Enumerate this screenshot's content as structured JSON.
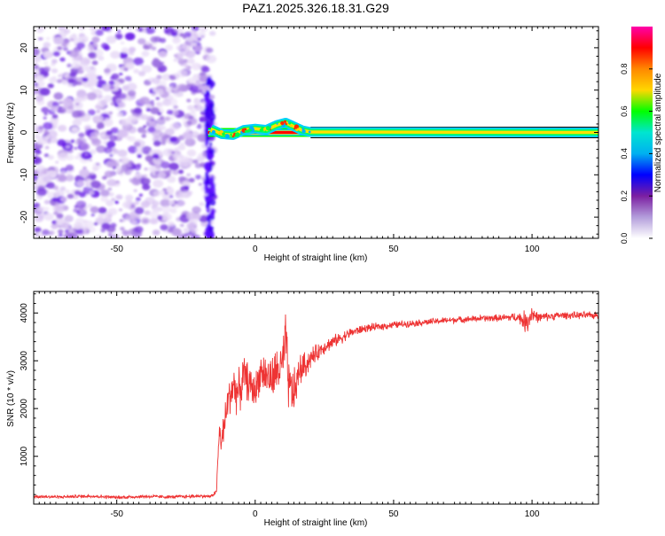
{
  "figure_title": "PAZ1.2025.326.18.31.G29",
  "chart_data": [
    {
      "type": "heatmap",
      "name": "spectrogram",
      "title": "PAZ1.2025.326.18.31.G29",
      "xlabel": "Height of straight line (km)",
      "ylabel": "Frequency (Hz)",
      "xlim": [
        -80,
        124
      ],
      "ylim": [
        -25,
        25
      ],
      "x_ticks": [
        -50,
        0,
        50,
        100
      ],
      "y_ticks": [
        -20,
        -10,
        0,
        10,
        20
      ],
      "colorbar": {
        "label": "Normalized spectral amplitude",
        "range": [
          0.0,
          1.0
        ],
        "ticks": [
          "0.0",
          "0.2",
          "0.4",
          "0.6",
          "0.8"
        ],
        "colormap": [
          "#ffffff",
          "#b39ddb",
          "#7b1fa2",
          "#0000ff",
          "#00b0f0",
          "#00e5d0",
          "#00ff00",
          "#ffd700",
          "#ff8800",
          "#ff0000",
          "#ff00aa"
        ]
      },
      "noise_region_x": [
        -80,
        -17
      ],
      "signal_transition_x": -17,
      "signal_line_freq_hz": 0,
      "signal_wobble": [
        {
          "x": -16,
          "f": 0.8
        },
        {
          "x": -12,
          "f": -0.4
        },
        {
          "x": -8,
          "f": -0.6
        },
        {
          "x": -4,
          "f": 0.6
        },
        {
          "x": 0,
          "f": 0.9
        },
        {
          "x": 4,
          "f": 0.6
        },
        {
          "x": 8,
          "f": 1.8
        },
        {
          "x": 11,
          "f": 2.3
        },
        {
          "x": 14,
          "f": 1.4
        },
        {
          "x": 17,
          "f": 0.5
        },
        {
          "x": 20,
          "f": 0.1
        },
        {
          "x": 124,
          "f": 0.0
        }
      ]
    },
    {
      "type": "line",
      "name": "snr",
      "xlabel": "Height of straight line (km)",
      "ylabel": "SNR (10 * v/v)",
      "xlim": [
        -80,
        124
      ],
      "ylim": [
        0,
        4450
      ],
      "x_ticks": [
        -50,
        0,
        50,
        100
      ],
      "y_ticks": [
        1000,
        2000,
        3000,
        4000
      ],
      "line_color": "#ee3333",
      "series": [
        {
          "name": "SNR",
          "x": [
            -80,
            -70,
            -60,
            -50,
            -40,
            -30,
            -20,
            -16,
            -14,
            -13,
            -12,
            -10,
            -8,
            -6,
            -4,
            -2,
            0,
            2,
            4,
            6,
            8,
            10,
            11,
            12,
            14,
            16,
            18,
            20,
            25,
            30,
            35,
            40,
            50,
            60,
            70,
            80,
            90,
            95,
            98,
            100,
            102,
            110,
            120,
            124
          ],
          "y": [
            160,
            150,
            170,
            140,
            160,
            150,
            170,
            160,
            260,
            1500,
            1300,
            2100,
            2500,
            2300,
            2700,
            2500,
            2350,
            2800,
            2700,
            2600,
            2800,
            2900,
            3500,
            2500,
            2300,
            2800,
            2900,
            3050,
            3300,
            3450,
            3600,
            3680,
            3750,
            3800,
            3850,
            3880,
            3900,
            3920,
            3800,
            4000,
            3900,
            3950,
            3950,
            3950
          ],
          "noise": [
            40,
            40,
            40,
            40,
            40,
            40,
            40,
            40,
            60,
            350,
            400,
            500,
            550,
            550,
            500,
            450,
            450,
            450,
            500,
            550,
            600,
            650,
            700,
            650,
            600,
            400,
            350,
            250,
            180,
            150,
            120,
            100,
            90,
            80,
            80,
            80,
            90,
            120,
            300,
            250,
            120,
            90,
            90,
            90
          ]
        }
      ]
    }
  ]
}
